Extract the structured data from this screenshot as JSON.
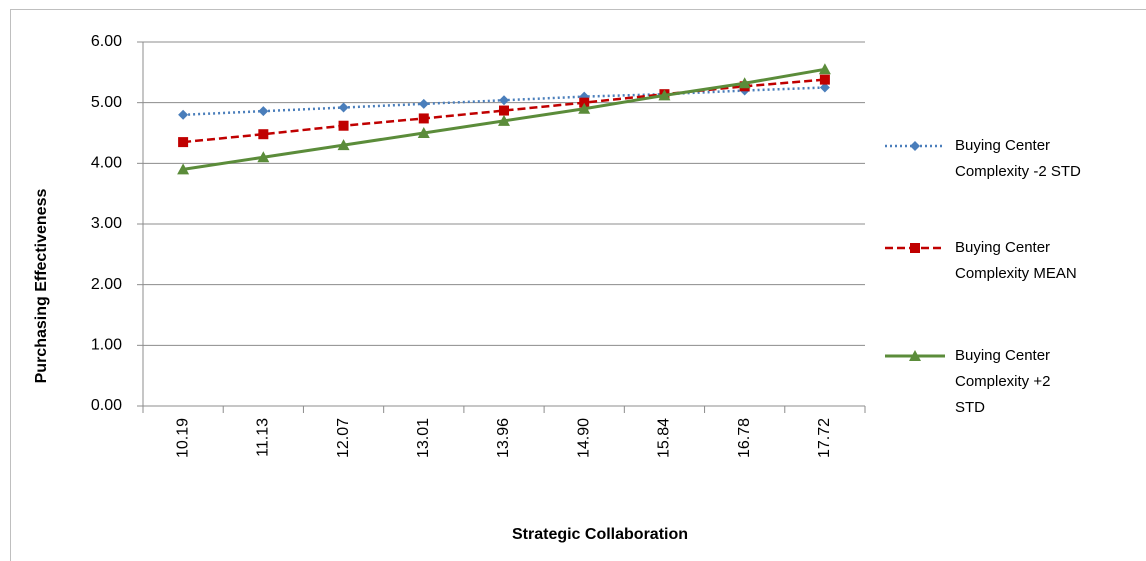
{
  "chart_data": {
    "type": "line",
    "x_label": "Strategic Collaboration",
    "y_label": "Purchasing Effectiveness",
    "categories": [
      "10.19",
      "11.13",
      "12.07",
      "13.01",
      "13.96",
      "14.90",
      "15.84",
      "16.78",
      "17.72"
    ],
    "series": [
      {
        "name": "Buying Center Complexity -2 STD",
        "color": "#4a7ebb",
        "marker": "diamond",
        "line_style": "dotted",
        "values": [
          4.8,
          4.86,
          4.92,
          4.98,
          5.04,
          5.1,
          5.14,
          5.2,
          5.25
        ]
      },
      {
        "name": "Buying Center Complexity MEAN",
        "color": "#c00000",
        "marker": "square",
        "line_style": "dashed",
        "values": [
          4.35,
          4.48,
          4.62,
          4.74,
          4.87,
          5.0,
          5.14,
          5.27,
          5.38
        ]
      },
      {
        "name": "Buying Center Complexity +2 STD",
        "color": "#5b8c3a",
        "marker": "triangle",
        "line_style": "solid",
        "values": [
          3.9,
          4.1,
          4.3,
          4.5,
          4.7,
          4.9,
          5.12,
          5.32,
          5.55
        ]
      }
    ],
    "ylim": [
      0,
      6
    ],
    "yticks": [
      {
        "value": 0,
        "label": "0.00"
      },
      {
        "value": 1,
        "label": "1.00"
      },
      {
        "value": 2,
        "label": "2.00"
      },
      {
        "value": 3,
        "label": "3.00"
      },
      {
        "value": 4,
        "label": "4.00"
      },
      {
        "value": 5,
        "label": "5.00"
      },
      {
        "value": 6,
        "label": "6.00"
      }
    ],
    "grid": true,
    "legend": "right"
  }
}
